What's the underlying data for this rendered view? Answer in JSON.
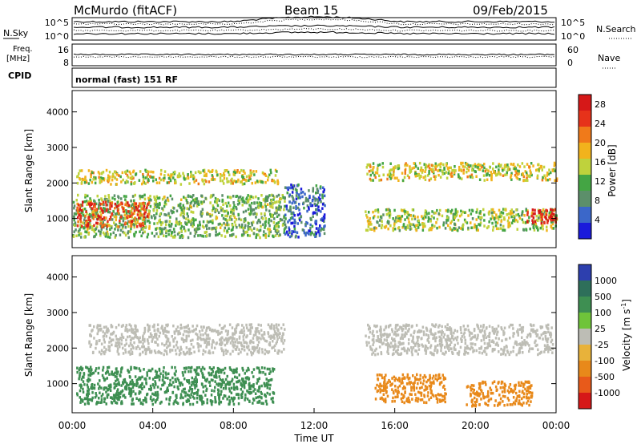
{
  "header": {
    "station": "McMurdo (fitACF)",
    "beam": "Beam 15",
    "date": "09/Feb/2015"
  },
  "top_panels": {
    "nsky_label": "N.Sky",
    "nsky_ticks": [
      "10^5",
      "10^0"
    ],
    "nsearch_label": "N.Search",
    "nsearch_ticks": [
      "10^5",
      "10^0"
    ],
    "freq_label_1": "Freq.",
    "freq_label_2": "[MHz]",
    "freq_ticks": [
      "16",
      "8"
    ],
    "nave_label": "Nave",
    "nave_ticks": [
      "60",
      "0"
    ],
    "cpid_label": "CPID",
    "cpid_text": "normal (fast) 151 RF"
  },
  "colors": {
    "power": [
      "#1a1adb",
      "#3b67c9",
      "#5c8f6a",
      "#44a544",
      "#bfd23c",
      "#f2b31c",
      "#f07a1a",
      "#e6321a",
      "#d61818"
    ],
    "velocity": [
      "#2d3fae",
      "#2e6f5a",
      "#3e8f52",
      "#6fc43a",
      "#bdbdb5",
      "#e8b23a",
      "#e8891a",
      "#e85a1a",
      "#d61818"
    ]
  },
  "chart_data": [
    {
      "type": "heatmap",
      "name": "power",
      "xlabel": "",
      "ylabel": "Slant Range [km]",
      "x_ticks": [
        "00:00",
        "04:00",
        "08:00",
        "12:00",
        "16:00",
        "20:00",
        "00:00"
      ],
      "xlim": [
        0,
        24
      ],
      "y_ticks": [
        1000,
        2000,
        3000,
        4000
      ],
      "ylim": [
        180,
        4600
      ],
      "colorbar": {
        "label": "Power [dB]",
        "ticks": [
          4,
          8,
          12,
          16,
          20,
          24,
          28
        ],
        "range": [
          0,
          30
        ]
      },
      "features": [
        {
          "x": [
            0.2,
            10.2
          ],
          "y": [
            2000,
            2400
          ],
          "level": 16
        },
        {
          "x": [
            0.0,
            10.5
          ],
          "y": [
            500,
            1700
          ],
          "level": 12
        },
        {
          "x": [
            0.2,
            3.8
          ],
          "y": [
            800,
            1500
          ],
          "level": 24
        },
        {
          "x": [
            10.5,
            12.5
          ],
          "y": [
            500,
            2000
          ],
          "level": 6
        },
        {
          "x": [
            14.5,
            24.0
          ],
          "y": [
            2100,
            2600
          ],
          "level": 16
        },
        {
          "x": [
            14.5,
            24.0
          ],
          "y": [
            700,
            1300
          ],
          "level": 14
        },
        {
          "x": [
            22.5,
            24.0
          ],
          "y": [
            900,
            1300
          ],
          "level": 28
        }
      ]
    },
    {
      "type": "heatmap",
      "name": "velocity",
      "xlabel": "Time UT",
      "ylabel": "Slant Range [km]",
      "x_ticks": [
        "00:00",
        "04:00",
        "08:00",
        "12:00",
        "16:00",
        "20:00",
        "00:00"
      ],
      "xlim": [
        0,
        24
      ],
      "y_ticks": [
        1000,
        2000,
        3000,
        4000
      ],
      "ylim": [
        180,
        4600
      ],
      "colorbar": {
        "label": "Velocity [m s^-1]",
        "ticks": [
          "1000",
          "500",
          "100",
          "25",
          "-25",
          "-100",
          "-500",
          "-1000"
        ]
      },
      "features": [
        {
          "x": [
            0.8,
            10.5
          ],
          "y": [
            1850,
            2700
          ],
          "velocity": 0
        },
        {
          "x": [
            0.2,
            10.0
          ],
          "y": [
            450,
            1500
          ],
          "velocity": 300
        },
        {
          "x": [
            14.5,
            23.8
          ],
          "y": [
            1850,
            2700
          ],
          "velocity": 0
        },
        {
          "x": [
            15.0,
            18.5
          ],
          "y": [
            500,
            1300
          ],
          "velocity": -300
        },
        {
          "x": [
            19.5,
            22.8
          ],
          "y": [
            400,
            1100
          ],
          "velocity": -400
        }
      ]
    }
  ]
}
